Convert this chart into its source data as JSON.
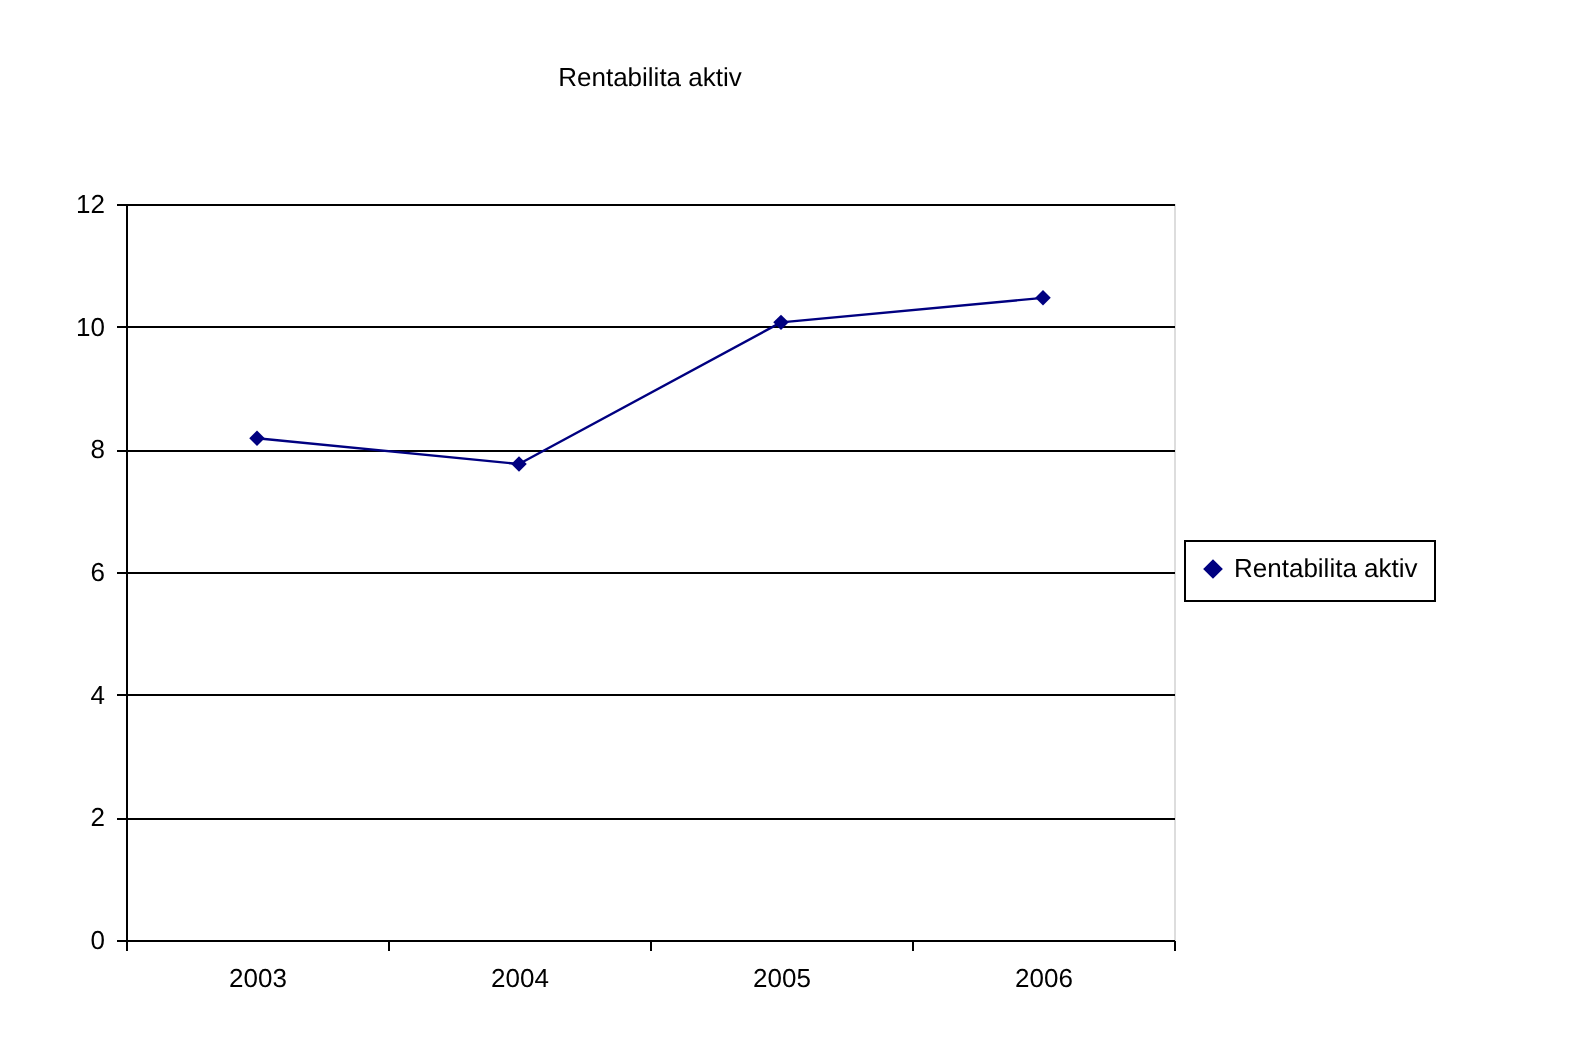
{
  "chart_data": {
    "type": "line",
    "title": "Rentabilita aktiv",
    "categories": [
      "2003",
      "2004",
      "2005",
      "2006"
    ],
    "series": [
      {
        "name": "Rentabilita aktiv",
        "color": "#000080",
        "values": [
          8.18,
          7.76,
          10.07,
          10.47
        ]
      }
    ],
    "ylim": [
      0,
      12
    ],
    "yticks": [
      0,
      2,
      4,
      6,
      8,
      10,
      12
    ],
    "grid": "y",
    "legend": "right",
    "marker": "diamond",
    "line_style": "solid"
  }
}
